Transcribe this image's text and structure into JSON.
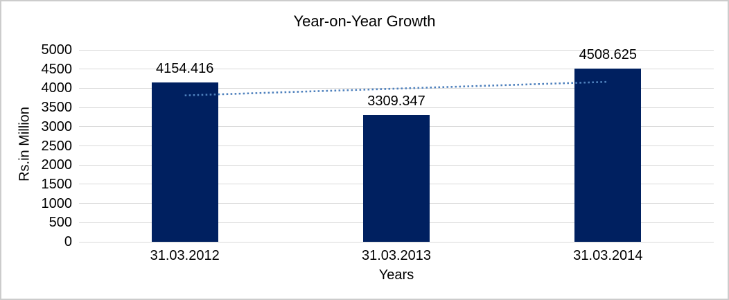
{
  "chart_data": {
    "type": "bar",
    "title": "Year-on-Year Growth",
    "xlabel": "Years",
    "ylabel": "Rs.in Million",
    "categories": [
      "31.03.2012",
      "31.03.2013",
      "31.03.2014"
    ],
    "values": [
      4154.416,
      3309.347,
      4508.625
    ],
    "data_labels": [
      "4154.416",
      "3309.347",
      "4508.625"
    ],
    "ylim": [
      0,
      5000
    ],
    "ytick_step": 500,
    "grid": true,
    "legend": "none",
    "trendline": {
      "type": "linear",
      "style": "dotted",
      "endpoint_values": [
        3813.69,
        4167.9
      ]
    }
  },
  "colors": {
    "bar": "#002060",
    "trendline": "#4f81bd",
    "gridline": "#d9d9d9",
    "text": "#000000",
    "frame_border": "#cccccc",
    "background": "#ffffff"
  }
}
